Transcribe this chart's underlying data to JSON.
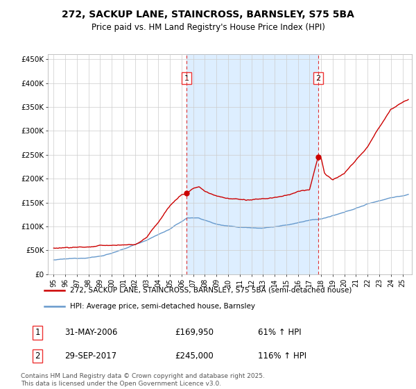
{
  "title1": "272, SACKUP LANE, STAINCROSS, BARNSLEY, S75 5BA",
  "title2": "Price paid vs. HM Land Registry's House Price Index (HPI)",
  "legend_line1": "272, SACKUP LANE, STAINCROSS, BARNSLEY, S75 5BA (semi-detached house)",
  "legend_line2": "HPI: Average price, semi-detached house, Barnsley",
  "footer": "Contains HM Land Registry data © Crown copyright and database right 2025.\nThis data is licensed under the Open Government Licence v3.0.",
  "sale1_date": "31-MAY-2006",
  "sale1_price": 169950,
  "sale1_hpi_str": "61% ↑ HPI",
  "sale2_date": "29-SEP-2017",
  "sale2_price": 245000,
  "sale2_hpi_str": "116% ↑ HPI",
  "sale1_x": 2006.42,
  "sale2_x": 2017.75,
  "ylim_min": 0,
  "ylim_max": 460000,
  "yticks": [
    0,
    50000,
    100000,
    150000,
    200000,
    250000,
    300000,
    350000,
    400000,
    450000
  ],
  "ytick_labels": [
    "£0",
    "£50K",
    "£100K",
    "£150K",
    "£200K",
    "£250K",
    "£300K",
    "£350K",
    "£400K",
    "£450K"
  ],
  "xlim_min": 1994.5,
  "xlim_max": 2025.8,
  "xticks": [
    1995,
    1996,
    1997,
    1998,
    1999,
    2000,
    2001,
    2002,
    2003,
    2004,
    2005,
    2006,
    2007,
    2008,
    2009,
    2010,
    2011,
    2012,
    2013,
    2014,
    2015,
    2016,
    2017,
    2018,
    2019,
    2020,
    2021,
    2022,
    2023,
    2024,
    2025
  ],
  "red_color": "#cc0000",
  "blue_color": "#6699cc",
  "blue_fill_color": "#ddeeff",
  "dashed_color": "#dd3333",
  "grid_color": "#cccccc",
  "label_box_color": "#ee3333"
}
